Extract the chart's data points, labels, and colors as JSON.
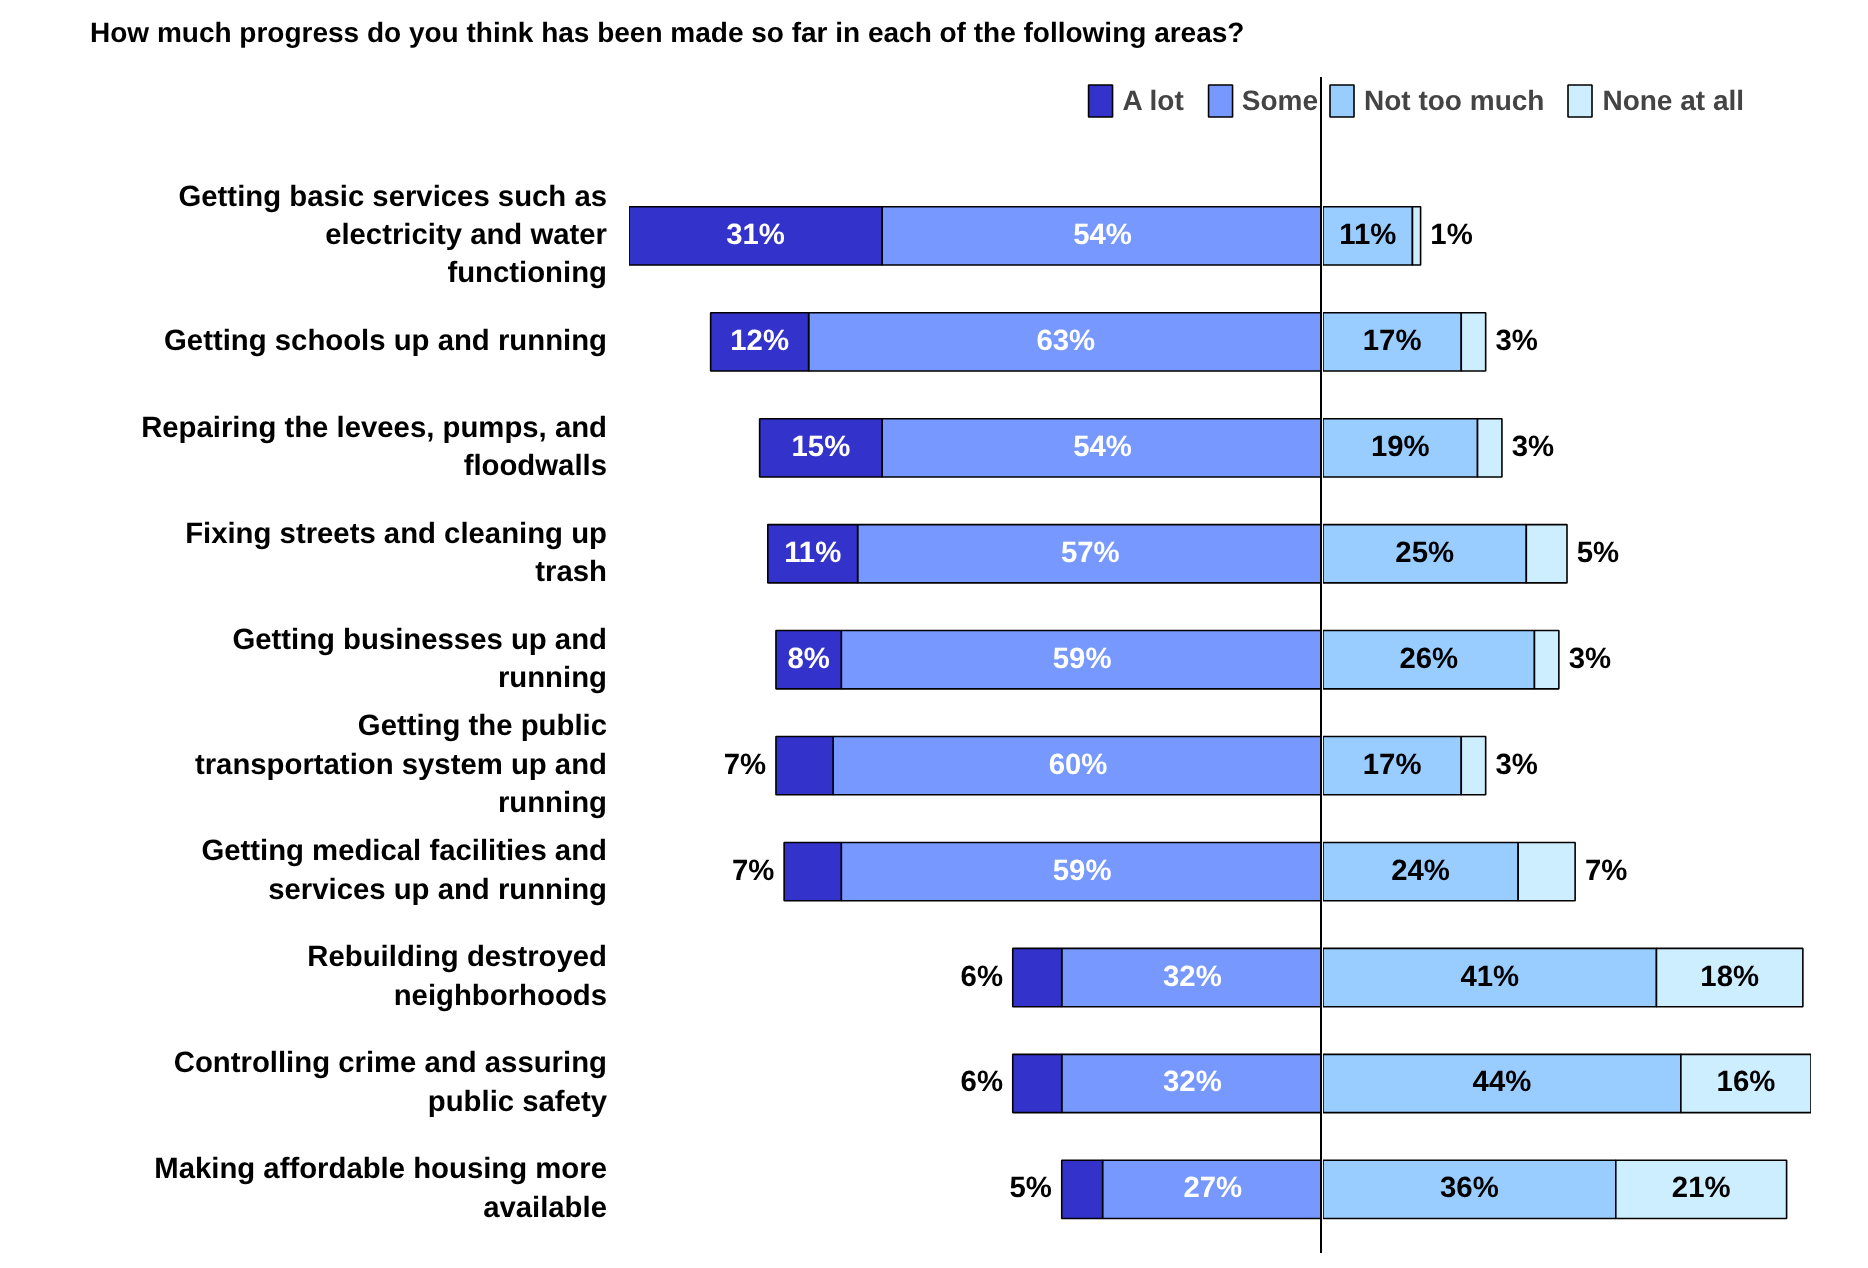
{
  "chart_data": [
    {
      "type": "bar",
      "orientation": "horizontal",
      "stacked": true,
      "title": "How much progress do you think has been made so far in each of the following areas?",
      "categories": [
        "Getting basic services such as electricity and water functioning",
        "Getting schools up and running",
        "Repairing the levees, pumps, and floodwalls",
        "Fixing streets and cleaning up trash",
        "Getting businesses up and running",
        "Getting the public transportation system up and running",
        "Getting medical facilities and services up and running",
        "Rebuilding destroyed neighborhoods",
        "Controlling crime and assuring public safety",
        "Making affordable housing more available"
      ],
      "xlim": [
        85,
        0
      ],
      "series": [
        {
          "name": "Some",
          "color": "#7799ff",
          "values": [
            54,
            63,
            54,
            57,
            59,
            60,
            59,
            32,
            32,
            27
          ],
          "value_labels": [
            "54%",
            "63%",
            "54%",
            "57%",
            "59%",
            "60%",
            "59%",
            "32%",
            "32%",
            "27%"
          ]
        },
        {
          "name": "A lot",
          "color": "#3333cc",
          "values": [
            31,
            12,
            15,
            11,
            8,
            7,
            7,
            6,
            6,
            5
          ],
          "value_labels": [
            "31%",
            "12%",
            "15%",
            "11%",
            "8%",
            "7%",
            "7%",
            "6%",
            "6%",
            "5%"
          ]
        }
      ],
      "ref_lines": [
        {
          "axis": "x",
          "value": 0
        }
      ],
      "tick_labels": "y",
      "legend": "top right"
    },
    {
      "type": "bar",
      "orientation": "horizontal",
      "stacked": true,
      "categories": [
        "Getting basic services such as electricity and water functioning",
        "Getting schools up and running",
        "Repairing the levees, pumps, and floodwalls",
        "Fixing streets and cleaning up trash",
        "Getting businesses up and running",
        "Getting the public transportation system up and running",
        "Getting medical facilities and services up and running",
        "Rebuilding destroyed neighborhoods",
        "Controlling crime and assuring public safety",
        "Making affordable housing more available"
      ],
      "xlim": [
        0,
        60
      ],
      "series": [
        {
          "name": "Not too much",
          "color": "#99ccff",
          "values": [
            11,
            17,
            19,
            25,
            26,
            17,
            24,
            41,
            44,
            36
          ],
          "value_labels": [
            "11%",
            "17%",
            "19%",
            "25%",
            "26%",
            "17%",
            "24%",
            "41%",
            "44%",
            "36%"
          ]
        },
        {
          "name": "None at all",
          "color": "#cceeff",
          "values": [
            1,
            3,
            3,
            5,
            3,
            3,
            7,
            18,
            16,
            21
          ],
          "value_labels": [
            "1%",
            "3%",
            "3%",
            "5%",
            "3%",
            "3%",
            "7%",
            "18%",
            "16%",
            "21%"
          ]
        }
      ],
      "tick_labels": false,
      "legend": "top left"
    }
  ]
}
